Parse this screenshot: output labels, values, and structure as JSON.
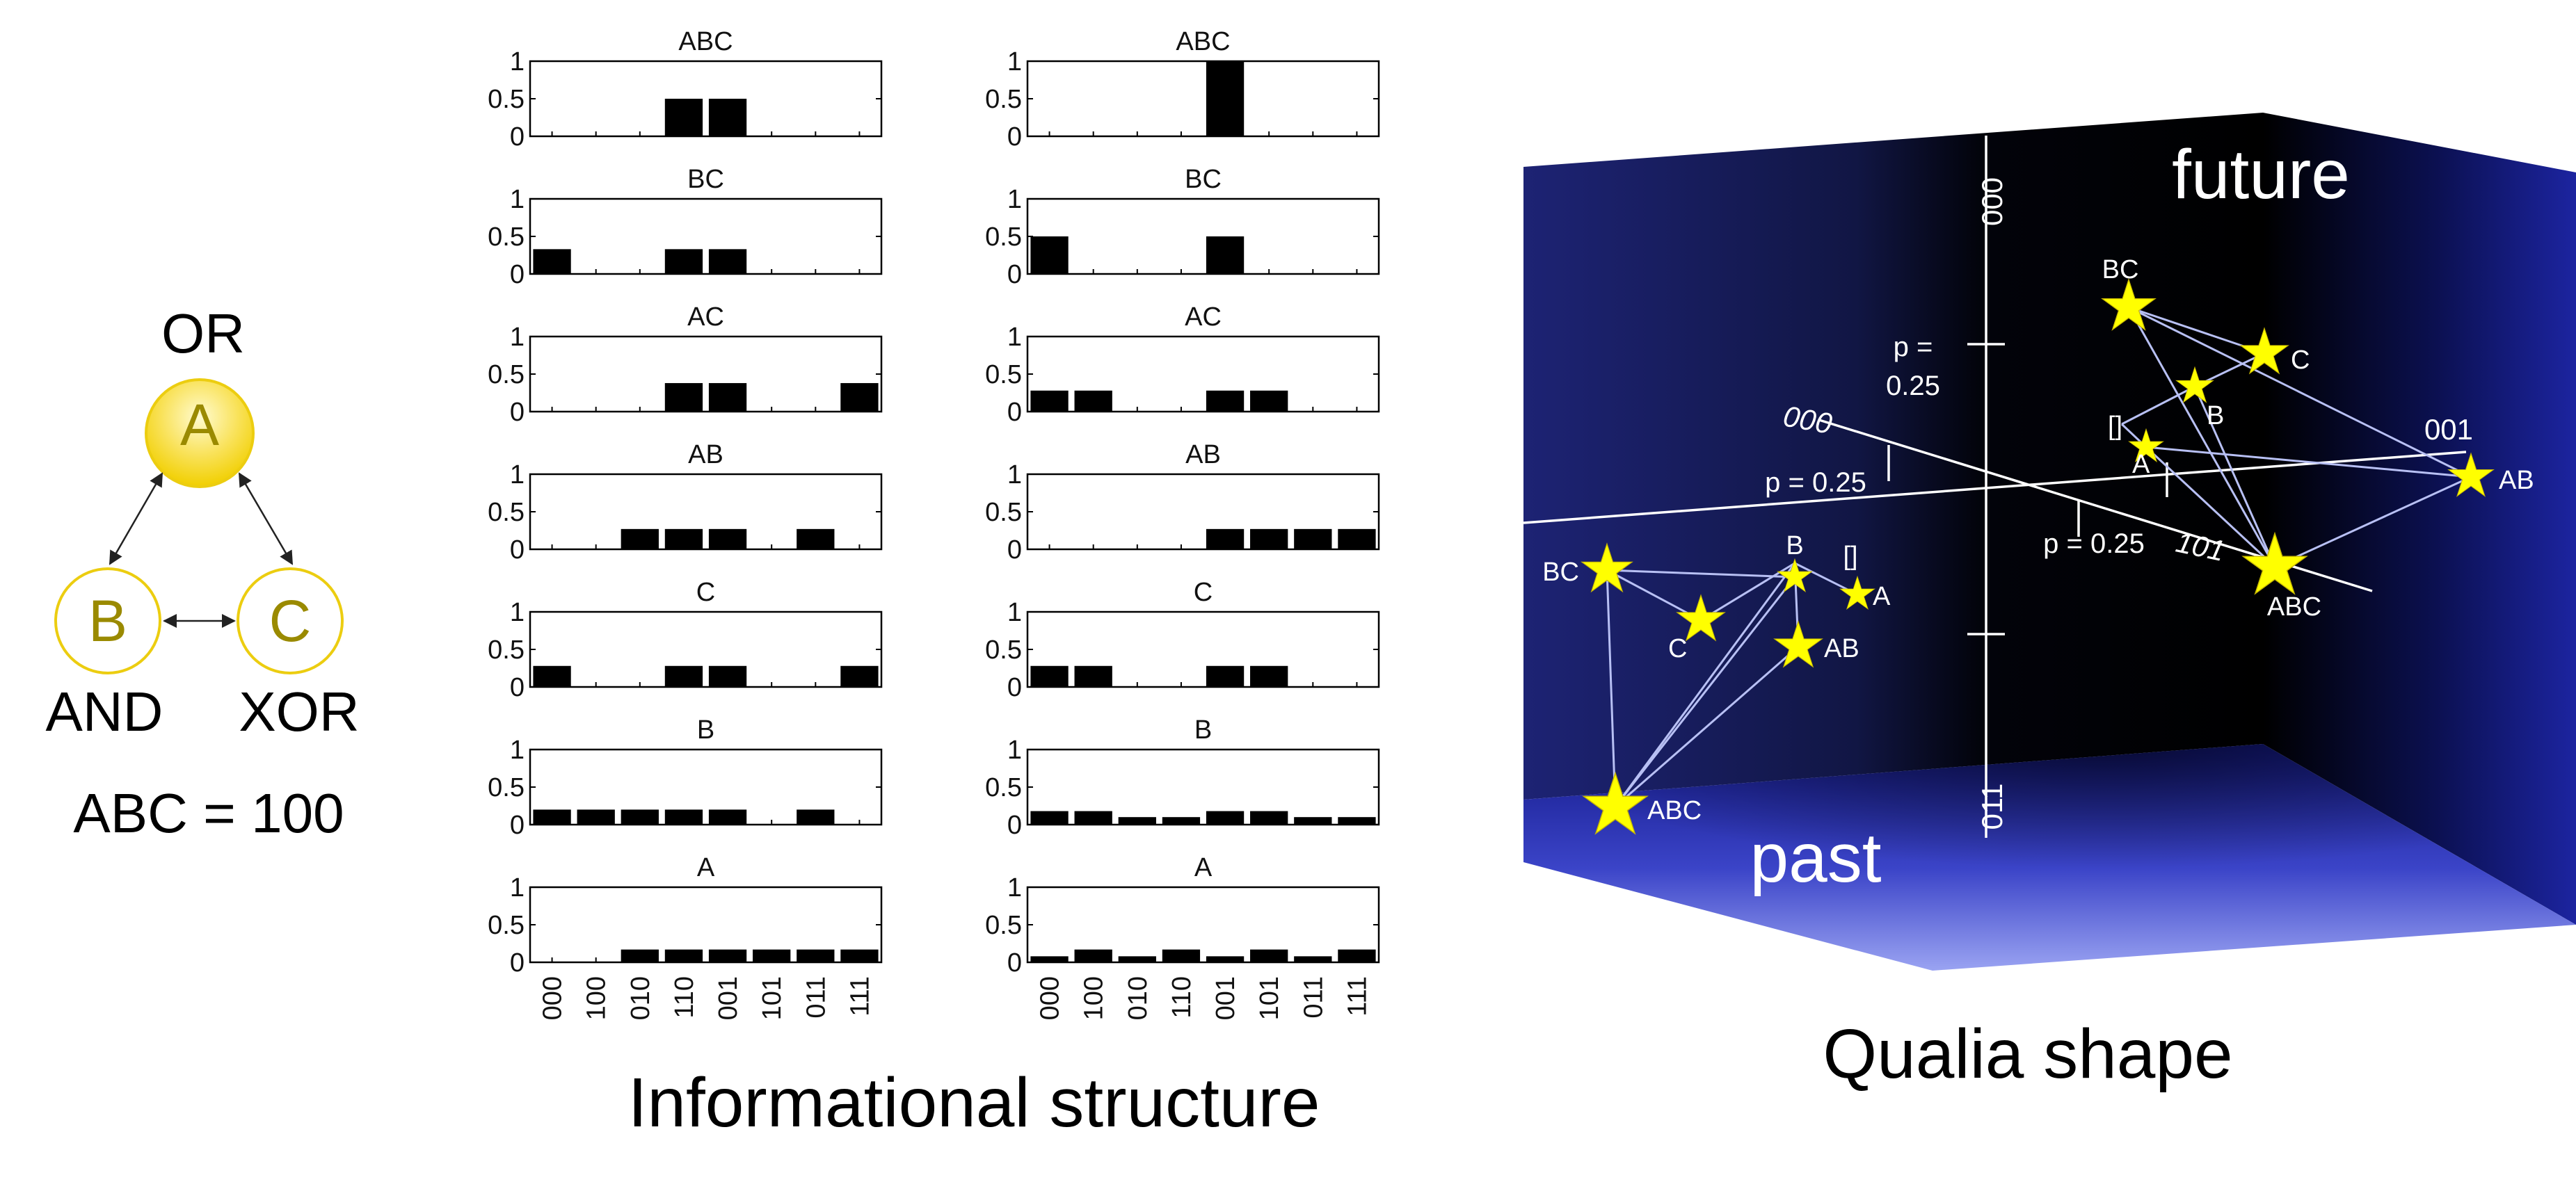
{
  "network": {
    "node_a": {
      "letter": "A",
      "gate": "OR"
    },
    "node_b": {
      "letter": "B",
      "gate": "AND"
    },
    "node_c": {
      "letter": "C",
      "gate": "XOR"
    },
    "state_label": "ABC = 100",
    "colors": {
      "node_fill_top": "#fff59a",
      "node_fill_bottom": "#f3d300",
      "node_stroke": "#e8c800",
      "node_letter": "#9a8a00"
    }
  },
  "chart_data": {
    "type": "bar",
    "caption": "Informational structure",
    "x_tick_labels": [
      "000",
      "100",
      "010",
      "110",
      "001",
      "101",
      "011",
      "111"
    ],
    "y_tick_labels": [
      "0",
      "0.5",
      "1"
    ],
    "ylim": [
      0,
      1
    ],
    "bar_color": "#000000",
    "panels": [
      {
        "title": "ABC",
        "values": [
          0,
          0,
          0,
          0.5,
          0.5,
          0,
          0,
          0
        ]
      },
      {
        "title": "ABC",
        "values": [
          0,
          0,
          0,
          0,
          1,
          0,
          0,
          0
        ]
      },
      {
        "title": "BC",
        "values": [
          0.33,
          0,
          0,
          0.33,
          0.33,
          0,
          0,
          0
        ]
      },
      {
        "title": "BC",
        "values": [
          0.5,
          0,
          0,
          0,
          0.5,
          0,
          0,
          0
        ]
      },
      {
        "title": "AC",
        "values": [
          0,
          0,
          0,
          0.38,
          0.38,
          0,
          0,
          0.38
        ]
      },
      {
        "title": "AC",
        "values": [
          0.28,
          0.28,
          0,
          0,
          0.28,
          0.28,
          0,
          0
        ]
      },
      {
        "title": "AB",
        "values": [
          0,
          0,
          0.27,
          0.27,
          0.27,
          0,
          0.27,
          0
        ]
      },
      {
        "title": "AB",
        "values": [
          0,
          0,
          0,
          0,
          0.27,
          0.27,
          0.27,
          0.27
        ]
      },
      {
        "title": "C",
        "values": [
          0.28,
          0,
          0,
          0.28,
          0.28,
          0,
          0,
          0.28
        ]
      },
      {
        "title": "C",
        "values": [
          0.28,
          0.28,
          0,
          0,
          0.28,
          0.28,
          0,
          0
        ]
      },
      {
        "title": "B",
        "values": [
          0.2,
          0.2,
          0.2,
          0.2,
          0.2,
          0,
          0.2,
          0
        ]
      },
      {
        "title": "B",
        "values": [
          0.18,
          0.18,
          0.1,
          0.1,
          0.18,
          0.18,
          0.1,
          0.1
        ]
      },
      {
        "title": "A",
        "values": [
          0,
          0,
          0.17,
          0.17,
          0.17,
          0.17,
          0.17,
          0.17
        ]
      },
      {
        "title": "A",
        "values": [
          0.08,
          0.17,
          0.08,
          0.17,
          0.08,
          0.17,
          0.08,
          0.17
        ]
      }
    ]
  },
  "qualia": {
    "caption": "Qualia shape",
    "future_label": "future",
    "past_label": "past",
    "axis_labels": {
      "top": "000",
      "bottom": "011",
      "left": "000",
      "right": "001",
      "front": "101"
    },
    "p_labels": {
      "vertical_line1": "p =",
      "vertical_line2": "0.25",
      "left": "p = 0.25",
      "front": "p = 0.25"
    },
    "future_concepts": [
      {
        "label": "BC",
        "size": "medium"
      },
      {
        "label": "C",
        "size": "medium"
      },
      {
        "label": "B",
        "size": "small"
      },
      {
        "label": "A",
        "size": "small"
      },
      {
        "label": "[]",
        "size": "label-only"
      },
      {
        "label": "AB",
        "size": "medium"
      },
      {
        "label": "ABC",
        "size": "large"
      }
    ],
    "past_concepts": [
      {
        "label": "BC",
        "size": "medium"
      },
      {
        "label": "C",
        "size": "medium"
      },
      {
        "label": "B",
        "size": "small"
      },
      {
        "label": "[]",
        "size": "label-only"
      },
      {
        "label": "A",
        "size": "small"
      },
      {
        "label": "AB",
        "size": "medium"
      },
      {
        "label": "ABC",
        "size": "large"
      }
    ],
    "colors": {
      "star": "#ffff00",
      "star_stroke": "#c8b800",
      "edges": "#b8bff0",
      "axes": "#ffffff",
      "back_wall": "#1c2270",
      "floor": "#3b44d0"
    }
  }
}
